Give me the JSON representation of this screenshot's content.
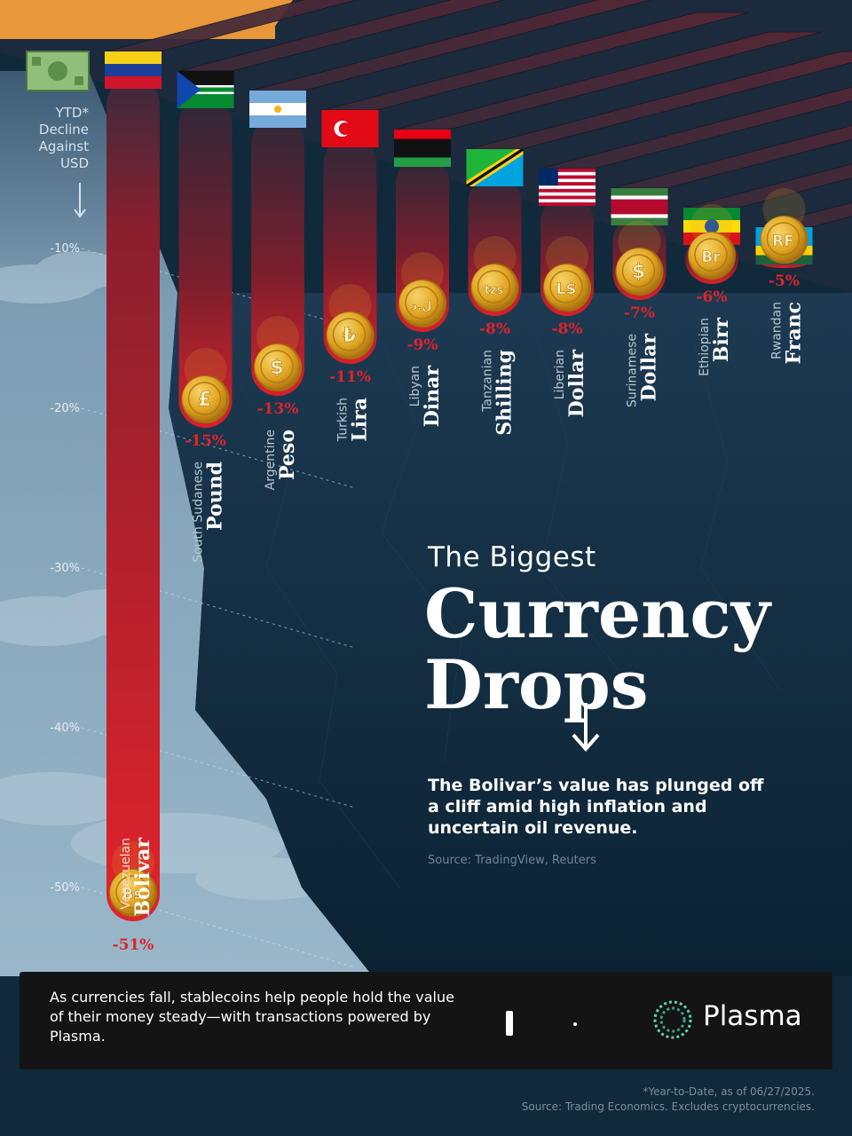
{
  "colors": {
    "background": "#0f2a3d",
    "sky": "#8fb0c6",
    "bar_red": "#e0232b",
    "accent_orange": "#e8973a",
    "value_red": "#e0232b",
    "coin_gold": "#e3a923"
  },
  "axis": {
    "title": "YTD* Decline Against USD",
    "ticks": [
      "-10%",
      "-20%",
      "-30%",
      "-40%",
      "-50%"
    ],
    "tick_values": [
      -10,
      -20,
      -30,
      -40,
      -50
    ]
  },
  "title": {
    "small": "The Biggest",
    "big_line1": "Currency",
    "big_line2": "Drops"
  },
  "subtitle": "The Bolivar’s value has plunged off a cliff amid high inflation and uncertain oil revenue.",
  "source1": "Source: TradingView, Reuters",
  "banner": {
    "text": "As currencies fall, stablecoins help people hold the value of their money steady—with transactions powered by Plasma.",
    "brand": "Plasma"
  },
  "footnote": {
    "line1": "*Year-to-Date, as of 06/27/2025.",
    "line2": "Source: Trading Economics. Excludes cryptocurrencies."
  },
  "chart_data": {
    "type": "bar",
    "ylabel": "YTD* Decline Against USD",
    "ylim": [
      0,
      -55
    ],
    "unit": "%",
    "categories": [
      {
        "country": "Venezuelan",
        "currency": "Bolivar",
        "value": -51,
        "label": "-51%",
        "symbol": "Bs",
        "flag": "venezuela-flag-icon"
      },
      {
        "country": "South Sudanese",
        "currency": "Pound",
        "value": -15,
        "label": "-15%",
        "symbol": "£",
        "flag": "south-sudan-flag-icon"
      },
      {
        "country": "Argentine",
        "currency": "Peso",
        "value": -13,
        "label": "-13%",
        "symbol": "$",
        "flag": "argentina-flag-icon"
      },
      {
        "country": "Turkish",
        "currency": "Lira",
        "value": -11,
        "label": "-11%",
        "symbol": "₺",
        "flag": "turkey-flag-icon"
      },
      {
        "country": "Libyan",
        "currency": "Dinar",
        "value": -9,
        "label": "-9%",
        "symbol": "ل.د",
        "flag": "libya-flag-icon"
      },
      {
        "country": "Tanzanian",
        "currency": "Shilling",
        "value": -8,
        "label": "-8%",
        "symbol": "tzs",
        "flag": "tanzania-flag-icon"
      },
      {
        "country": "Liberian",
        "currency": "Dollar",
        "value": -8,
        "label": "-8%",
        "symbol": "L$",
        "flag": "liberia-flag-icon"
      },
      {
        "country": "Surinamese",
        "currency": "Dollar",
        "value": -7,
        "label": "-7%",
        "symbol": "$",
        "flag": "suriname-flag-icon"
      },
      {
        "country": "Ethiopian",
        "currency": "Birr",
        "value": -6,
        "label": "-6%",
        "symbol": "Br",
        "flag": "ethiopia-flag-icon"
      },
      {
        "country": "Rwandan",
        "currency": "Franc",
        "value": -5,
        "label": "-5%",
        "symbol": "RF",
        "flag": "rwanda-flag-icon"
      }
    ]
  }
}
